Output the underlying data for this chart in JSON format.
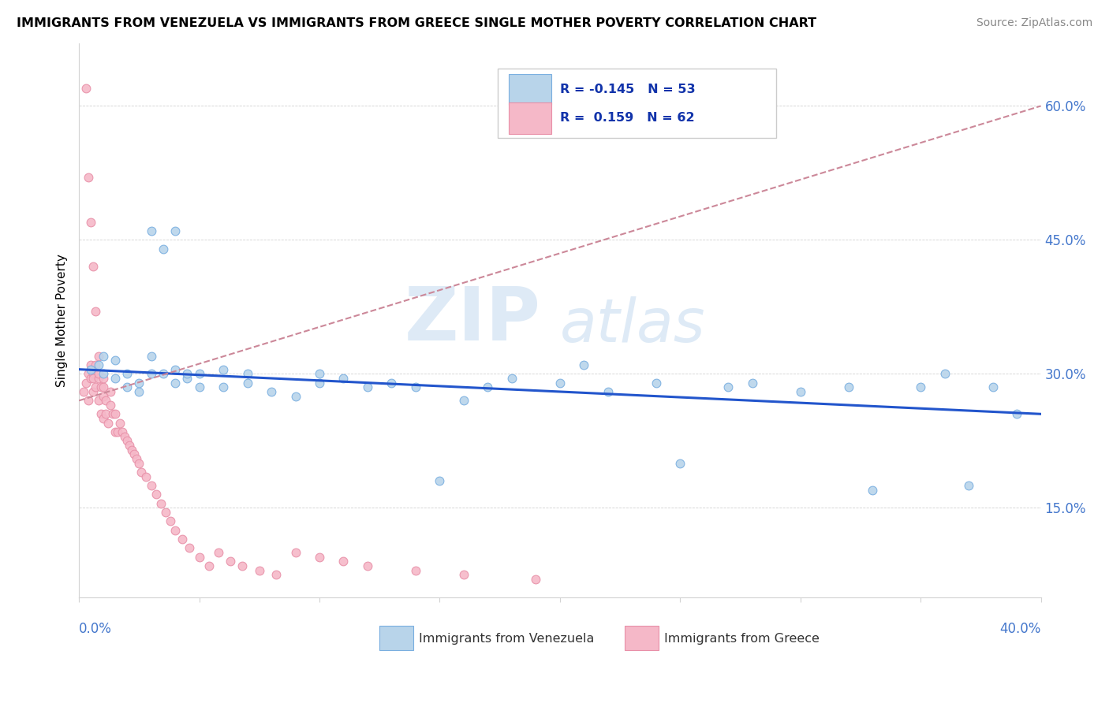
{
  "title": "IMMIGRANTS FROM VENEZUELA VS IMMIGRANTS FROM GREECE SINGLE MOTHER POVERTY CORRELATION CHART",
  "source": "Source: ZipAtlas.com",
  "ylabel": "Single Mother Poverty",
  "yticks": [
    "15.0%",
    "30.0%",
    "45.0%",
    "60.0%"
  ],
  "ytick_vals": [
    0.15,
    0.3,
    0.45,
    0.6
  ],
  "xmin": 0.0,
  "xmax": 0.4,
  "ymin": 0.05,
  "ymax": 0.67,
  "color_venezuela": "#B8D4EA",
  "color_greece": "#F5B8C8",
  "color_venezuela_edge": "#7AAFE0",
  "color_greece_edge": "#E890A8",
  "trendline_venezuela": "#2255CC",
  "trendline_greece": "#CC8899",
  "watermark_zip": "ZIP",
  "watermark_atlas": "atlas",
  "venezuela_x": [
    0.005,
    0.008,
    0.01,
    0.01,
    0.015,
    0.015,
    0.02,
    0.02,
    0.025,
    0.025,
    0.03,
    0.03,
    0.03,
    0.035,
    0.035,
    0.04,
    0.04,
    0.04,
    0.045,
    0.045,
    0.05,
    0.05,
    0.06,
    0.06,
    0.07,
    0.07,
    0.08,
    0.09,
    0.1,
    0.1,
    0.11,
    0.12,
    0.13,
    0.14,
    0.15,
    0.16,
    0.17,
    0.18,
    0.2,
    0.21,
    0.22,
    0.24,
    0.25,
    0.27,
    0.28,
    0.3,
    0.32,
    0.33,
    0.35,
    0.36,
    0.37,
    0.38,
    0.39
  ],
  "venezuela_y": [
    0.305,
    0.31,
    0.3,
    0.32,
    0.295,
    0.315,
    0.285,
    0.3,
    0.28,
    0.29,
    0.3,
    0.32,
    0.46,
    0.3,
    0.44,
    0.29,
    0.305,
    0.46,
    0.295,
    0.3,
    0.285,
    0.3,
    0.305,
    0.285,
    0.29,
    0.3,
    0.28,
    0.275,
    0.29,
    0.3,
    0.295,
    0.285,
    0.29,
    0.285,
    0.18,
    0.27,
    0.285,
    0.295,
    0.29,
    0.31,
    0.28,
    0.29,
    0.2,
    0.285,
    0.29,
    0.28,
    0.285,
    0.17,
    0.285,
    0.3,
    0.175,
    0.285,
    0.255
  ],
  "greece_x": [
    0.002,
    0.003,
    0.004,
    0.004,
    0.005,
    0.005,
    0.006,
    0.006,
    0.006,
    0.007,
    0.007,
    0.008,
    0.008,
    0.008,
    0.009,
    0.009,
    0.01,
    0.01,
    0.01,
    0.01,
    0.011,
    0.011,
    0.012,
    0.013,
    0.013,
    0.014,
    0.015,
    0.015,
    0.016,
    0.017,
    0.018,
    0.019,
    0.02,
    0.021,
    0.022,
    0.023,
    0.024,
    0.025,
    0.026,
    0.028,
    0.03,
    0.032,
    0.034,
    0.036,
    0.038,
    0.04,
    0.043,
    0.046,
    0.05,
    0.054,
    0.058,
    0.063,
    0.068,
    0.075,
    0.082,
    0.09,
    0.1,
    0.11,
    0.12,
    0.14,
    0.16,
    0.19
  ],
  "greece_y": [
    0.28,
    0.29,
    0.27,
    0.3,
    0.295,
    0.31,
    0.28,
    0.3,
    0.295,
    0.285,
    0.31,
    0.27,
    0.295,
    0.3,
    0.255,
    0.285,
    0.25,
    0.275,
    0.285,
    0.295,
    0.255,
    0.27,
    0.245,
    0.265,
    0.28,
    0.255,
    0.235,
    0.255,
    0.235,
    0.245,
    0.235,
    0.23,
    0.225,
    0.22,
    0.215,
    0.21,
    0.205,
    0.2,
    0.19,
    0.185,
    0.175,
    0.165,
    0.155,
    0.145,
    0.135,
    0.125,
    0.115,
    0.105,
    0.095,
    0.085,
    0.1,
    0.09,
    0.085,
    0.08,
    0.075,
    0.1,
    0.095,
    0.09,
    0.085,
    0.08,
    0.075,
    0.07
  ],
  "greece_high_x": [
    0.003,
    0.004,
    0.005,
    0.006,
    0.007,
    0.008
  ],
  "greece_high_y": [
    0.62,
    0.52,
    0.47,
    0.42,
    0.37,
    0.32
  ]
}
